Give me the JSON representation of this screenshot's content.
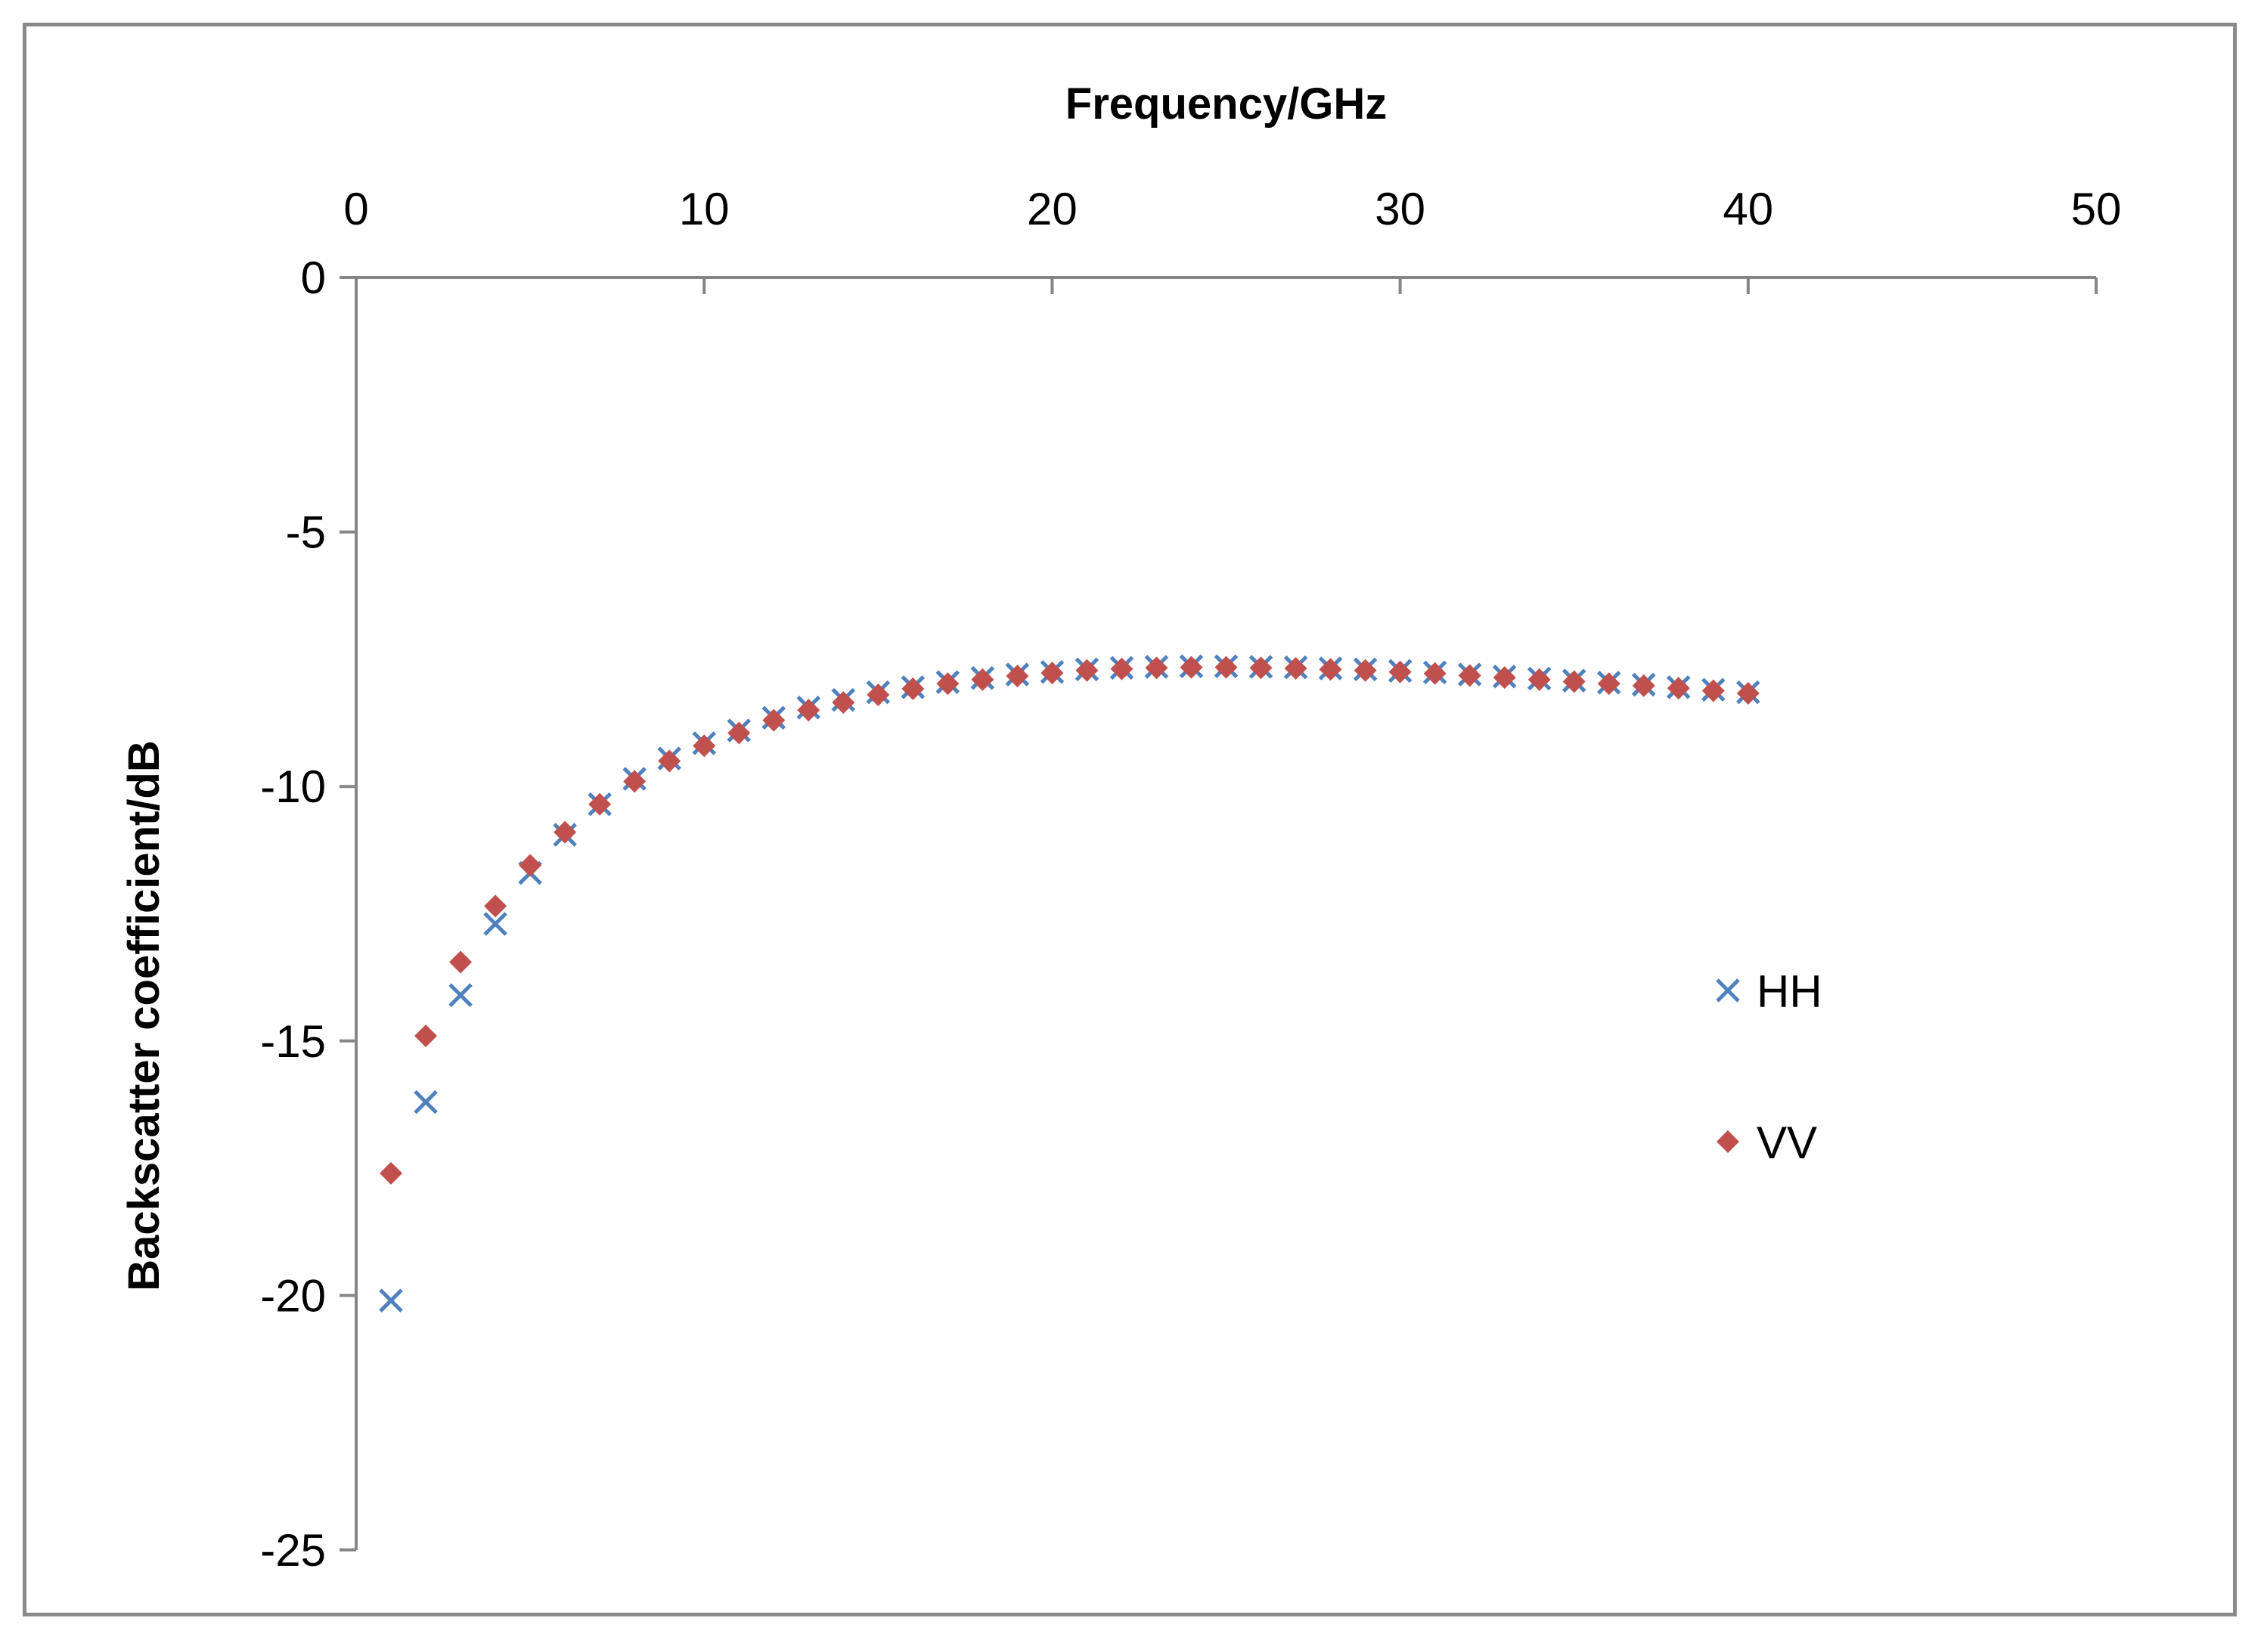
{
  "chart_data": {
    "type": "scatter",
    "title": "",
    "xlabel": "Frequency/GHz",
    "ylabel": "Backscatter coefficient/dB",
    "xlim": [
      0,
      50
    ],
    "ylim": [
      -25,
      0
    ],
    "x_axis_position": "top",
    "x_ticks": [
      0,
      10,
      20,
      30,
      40,
      50
    ],
    "y_ticks": [
      0,
      -5,
      -10,
      -15,
      -20,
      -25
    ],
    "grid": false,
    "legend_position": "right",
    "series": [
      {
        "name": "HH",
        "marker": "x",
        "color": "#4f81bd",
        "x": [
          1,
          2,
          3,
          4,
          5,
          6,
          7,
          8,
          9,
          10,
          11,
          12,
          13,
          14,
          15,
          16,
          17,
          18,
          19,
          20,
          21,
          22,
          23,
          24,
          25,
          26,
          27,
          28,
          29,
          30,
          31,
          32,
          33,
          34,
          35,
          36,
          37,
          38,
          39,
          40
        ],
        "y": [
          -20.1,
          -16.2,
          -14.1,
          -12.7,
          -11.7,
          -10.95,
          -10.35,
          -9.85,
          -9.45,
          -9.15,
          -8.9,
          -8.65,
          -8.45,
          -8.3,
          -8.15,
          -8.05,
          -7.95,
          -7.87,
          -7.8,
          -7.75,
          -7.7,
          -7.67,
          -7.65,
          -7.64,
          -7.64,
          -7.65,
          -7.66,
          -7.68,
          -7.7,
          -7.73,
          -7.76,
          -7.8,
          -7.84,
          -7.88,
          -7.92,
          -7.96,
          -8.0,
          -8.05,
          -8.1,
          -8.15
        ]
      },
      {
        "name": "VV",
        "marker": "diamond",
        "color": "#c0504d",
        "x": [
          1,
          2,
          3,
          4,
          5,
          6,
          7,
          8,
          9,
          10,
          11,
          12,
          13,
          14,
          15,
          16,
          17,
          18,
          19,
          20,
          21,
          22,
          23,
          24,
          25,
          26,
          27,
          28,
          29,
          30,
          31,
          32,
          33,
          34,
          35,
          36,
          37,
          38,
          39,
          40
        ],
        "y": [
          -17.6,
          -14.9,
          -13.45,
          -12.35,
          -11.55,
          -10.9,
          -10.35,
          -9.9,
          -9.5,
          -9.2,
          -8.95,
          -8.7,
          -8.5,
          -8.35,
          -8.2,
          -8.08,
          -7.98,
          -7.9,
          -7.83,
          -7.77,
          -7.72,
          -7.69,
          -7.67,
          -7.66,
          -7.66,
          -7.67,
          -7.68,
          -7.7,
          -7.72,
          -7.75,
          -7.78,
          -7.82,
          -7.86,
          -7.9,
          -7.94,
          -7.98,
          -8.02,
          -8.07,
          -8.12,
          -8.17
        ]
      }
    ]
  }
}
